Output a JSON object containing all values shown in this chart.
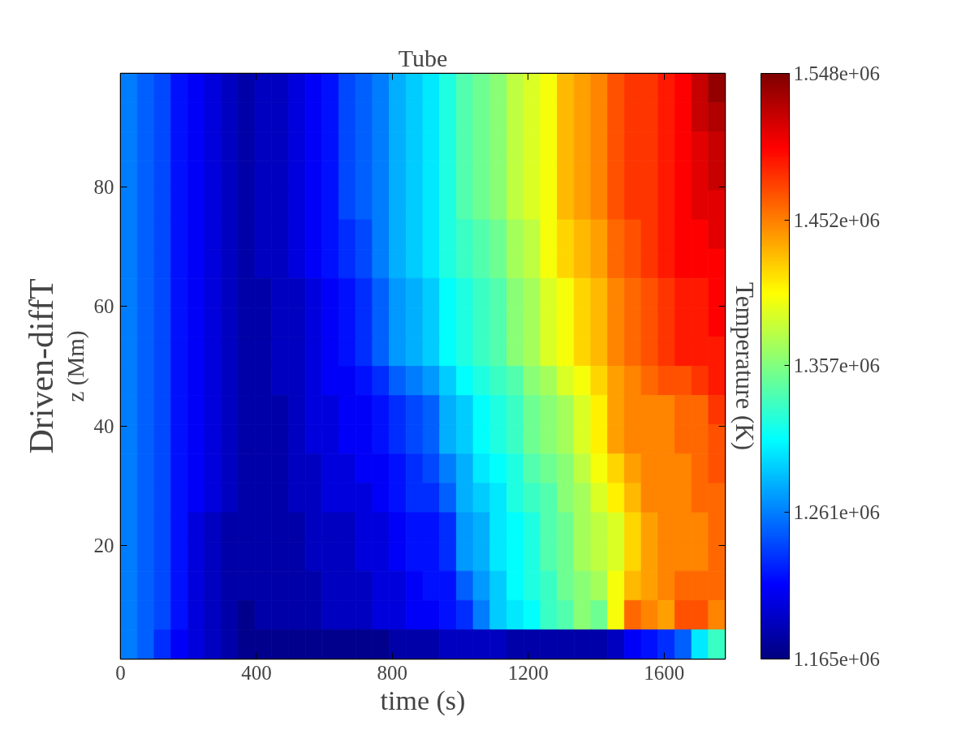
{
  "chart_data": {
    "type": "heatmap",
    "title": "Tube",
    "xlabel": "time (s)",
    "ylabel": "z (Mm)",
    "clabel": "Temperature (K)",
    "annotations": [
      "Driven-diffT"
    ],
    "xlim": [
      0,
      1780
    ],
    "ylim": [
      1,
      99
    ],
    "xticks": [
      0,
      400,
      800,
      1200,
      1600
    ],
    "yticks": [
      20,
      40,
      60,
      80
    ],
    "clim": [
      1165000,
      1548000
    ],
    "cticks": [
      {
        "value": 1165000,
        "label": "1.165e+06"
      },
      {
        "value": 1261000,
        "label": "1.261e+06"
      },
      {
        "value": 1357000,
        "label": "1.357e+06"
      },
      {
        "value": 1452000,
        "label": "1.452e+06"
      },
      {
        "value": 1548000,
        "label": "1.548e+06"
      }
    ],
    "cells": [
      [
        1260000.0,
        1250000.0,
        1240000.0,
        1220000.0,
        1210000.0,
        1200000.0,
        1190000.0,
        1180000.0,
        1190000.0,
        1190000.0,
        1200000.0,
        1210000.0,
        1220000.0,
        1240000.0,
        1250000.0,
        1260000.0,
        1280000.0,
        1290000.0,
        1300000.0,
        1320000.0,
        1340000.0,
        1350000.0,
        1360000.0,
        1380000.0,
        1390000.0,
        1400000.0,
        1430000.0,
        1440000.0,
        1450000.0,
        1470000.0,
        1480000.0,
        1480000.0,
        1490000.0,
        1500000.0,
        1520000.0,
        1540000.0
      ],
      [
        1260000.0,
        1250000.0,
        1240000.0,
        1220000.0,
        1210000.0,
        1200000.0,
        1190000.0,
        1180000.0,
        1190000.0,
        1190000.0,
        1200000.0,
        1210000.0,
        1220000.0,
        1240000.0,
        1250000.0,
        1260000.0,
        1280000.0,
        1290000.0,
        1300000.0,
        1320000.0,
        1340000.0,
        1350000.0,
        1360000.0,
        1380000.0,
        1390000.0,
        1400000.0,
        1430000.0,
        1440000.0,
        1450000.0,
        1470000.0,
        1480000.0,
        1480000.0,
        1490000.0,
        1500000.0,
        1520000.0,
        1530000.0
      ],
      [
        1260000.0,
        1250000.0,
        1240000.0,
        1220000.0,
        1210000.0,
        1200000.0,
        1190000.0,
        1180000.0,
        1190000.0,
        1190000.0,
        1200000.0,
        1210000.0,
        1220000.0,
        1240000.0,
        1250000.0,
        1260000.0,
        1280000.0,
        1290000.0,
        1300000.0,
        1320000.0,
        1340000.0,
        1350000.0,
        1360000.0,
        1380000.0,
        1390000.0,
        1400000.0,
        1430000.0,
        1440000.0,
        1450000.0,
        1470000.0,
        1480000.0,
        1480000.0,
        1490000.0,
        1500000.0,
        1510000.0,
        1520000.0
      ],
      [
        1260000.0,
        1250000.0,
        1240000.0,
        1220000.0,
        1210000.0,
        1200000.0,
        1190000.0,
        1180000.0,
        1190000.0,
        1190000.0,
        1200000.0,
        1210000.0,
        1220000.0,
        1240000.0,
        1250000.0,
        1260000.0,
        1280000.0,
        1290000.0,
        1300000.0,
        1320000.0,
        1340000.0,
        1350000.0,
        1360000.0,
        1380000.0,
        1390000.0,
        1400000.0,
        1430000.0,
        1440000.0,
        1450000.0,
        1470000.0,
        1480000.0,
        1480000.0,
        1490000.0,
        1500000.0,
        1510000.0,
        1520000.0
      ],
      [
        1260000.0,
        1250000.0,
        1240000.0,
        1220000.0,
        1210000.0,
        1200000.0,
        1190000.0,
        1180000.0,
        1190000.0,
        1190000.0,
        1200000.0,
        1210000.0,
        1220000.0,
        1240000.0,
        1250000.0,
        1260000.0,
        1280000.0,
        1290000.0,
        1300000.0,
        1320000.0,
        1340000.0,
        1350000.0,
        1360000.0,
        1380000.0,
        1390000.0,
        1400000.0,
        1430000.0,
        1440000.0,
        1450000.0,
        1470000.0,
        1480000.0,
        1480000.0,
        1490000.0,
        1500000.0,
        1510000.0,
        1510000.0
      ],
      [
        1260000.0,
        1250000.0,
        1240000.0,
        1220000.0,
        1210000.0,
        1200000.0,
        1190000.0,
        1180000.0,
        1190000.0,
        1190000.0,
        1200000.0,
        1210000.0,
        1220000.0,
        1230000.0,
        1240000.0,
        1260000.0,
        1280000.0,
        1290000.0,
        1300000.0,
        1320000.0,
        1330000.0,
        1340000.0,
        1350000.0,
        1370000.0,
        1380000.0,
        1400000.0,
        1420000.0,
        1430000.0,
        1440000.0,
        1460000.0,
        1470000.0,
        1480000.0,
        1490000.0,
        1500000.0,
        1500000.0,
        1510000.0
      ],
      [
        1260000.0,
        1250000.0,
        1240000.0,
        1220000.0,
        1210000.0,
        1200000.0,
        1190000.0,
        1180000.0,
        1190000.0,
        1190000.0,
        1200000.0,
        1210000.0,
        1220000.0,
        1230000.0,
        1240000.0,
        1260000.0,
        1280000.0,
        1290000.0,
        1300000.0,
        1320000.0,
        1330000.0,
        1340000.0,
        1350000.0,
        1370000.0,
        1380000.0,
        1400000.0,
        1420000.0,
        1430000.0,
        1440000.0,
        1460000.0,
        1470000.0,
        1480000.0,
        1490000.0,
        1500000.0,
        1500000.0,
        1500000.0
      ],
      [
        1260000.0,
        1250000.0,
        1240000.0,
        1220000.0,
        1210000.0,
        1200000.0,
        1190000.0,
        1180000.0,
        1180000.0,
        1190000.0,
        1190000.0,
        1200000.0,
        1210000.0,
        1220000.0,
        1230000.0,
        1250000.0,
        1270000.0,
        1280000.0,
        1290000.0,
        1310000.0,
        1320000.0,
        1330000.0,
        1340000.0,
        1360000.0,
        1370000.0,
        1390000.0,
        1400000.0,
        1420000.0,
        1430000.0,
        1450000.0,
        1460000.0,
        1470000.0,
        1480000.0,
        1490000.0,
        1490000.0,
        1500000.0
      ],
      [
        1260000.0,
        1250000.0,
        1240000.0,
        1220000.0,
        1210000.0,
        1200000.0,
        1190000.0,
        1180000.0,
        1180000.0,
        1190000.0,
        1190000.0,
        1200000.0,
        1210000.0,
        1220000.0,
        1230000.0,
        1250000.0,
        1270000.0,
        1280000.0,
        1290000.0,
        1310000.0,
        1320000.0,
        1330000.0,
        1340000.0,
        1360000.0,
        1370000.0,
        1390000.0,
        1400000.0,
        1420000.0,
        1430000.0,
        1450000.0,
        1460000.0,
        1470000.0,
        1480000.0,
        1490000.0,
        1490000.0,
        1500000.0
      ],
      [
        1260000.0,
        1250000.0,
        1240000.0,
        1220000.0,
        1210000.0,
        1200000.0,
        1190000.0,
        1180000.0,
        1180000.0,
        1190000.0,
        1190000.0,
        1200000.0,
        1210000.0,
        1220000.0,
        1230000.0,
        1250000.0,
        1270000.0,
        1280000.0,
        1290000.0,
        1310000.0,
        1320000.0,
        1330000.0,
        1340000.0,
        1360000.0,
        1370000.0,
        1390000.0,
        1400000.0,
        1420000.0,
        1430000.0,
        1450000.0,
        1460000.0,
        1470000.0,
        1480000.0,
        1490000.0,
        1490000.0,
        1490000.0
      ],
      [
        1260000.0,
        1250000.0,
        1240000.0,
        1220000.0,
        1210000.0,
        1200000.0,
        1190000.0,
        1180000.0,
        1180000.0,
        1190000.0,
        1190000.0,
        1200000.0,
        1210000.0,
        1210000.0,
        1220000.0,
        1230000.0,
        1250000.0,
        1260000.0,
        1270000.0,
        1290000.0,
        1310000.0,
        1320000.0,
        1330000.0,
        1340000.0,
        1360000.0,
        1370000.0,
        1390000.0,
        1400000.0,
        1420000.0,
        1440000.0,
        1450000.0,
        1460000.0,
        1470000.0,
        1470000.0,
        1480000.0,
        1490000.0
      ],
      [
        1260000.0,
        1250000.0,
        1240000.0,
        1220000.0,
        1210000.0,
        1200000.0,
        1190000.0,
        1180000.0,
        1180000.0,
        1180000.0,
        1190000.0,
        1200000.0,
        1200000.0,
        1210000.0,
        1210000.0,
        1220000.0,
        1230000.0,
        1240000.0,
        1250000.0,
        1280000.0,
        1290000.0,
        1310000.0,
        1320000.0,
        1330000.0,
        1350000.0,
        1360000.0,
        1370000.0,
        1390000.0,
        1410000.0,
        1440000.0,
        1450000.0,
        1450000.0,
        1450000.0,
        1460000.0,
        1460000.0,
        1480000.0
      ],
      [
        1260000.0,
        1250000.0,
        1240000.0,
        1220000.0,
        1210000.0,
        1200000.0,
        1190000.0,
        1180000.0,
        1180000.0,
        1180000.0,
        1190000.0,
        1200000.0,
        1200000.0,
        1210000.0,
        1210000.0,
        1220000.0,
        1230000.0,
        1240000.0,
        1250000.0,
        1280000.0,
        1290000.0,
        1310000.0,
        1320000.0,
        1330000.0,
        1350000.0,
        1360000.0,
        1370000.0,
        1390000.0,
        1410000.0,
        1440000.0,
        1450000.0,
        1450000.0,
        1450000.0,
        1460000.0,
        1460000.0,
        1470000.0
      ],
      [
        1260000.0,
        1250000.0,
        1240000.0,
        1220000.0,
        1210000.0,
        1200000.0,
        1190000.0,
        1180000.0,
        1180000.0,
        1180000.0,
        1190000.0,
        1190000.0,
        1200000.0,
        1200000.0,
        1210000.0,
        1210000.0,
        1220000.0,
        1230000.0,
        1240000.0,
        1260000.0,
        1280000.0,
        1300000.0,
        1310000.0,
        1320000.0,
        1340000.0,
        1350000.0,
        1360000.0,
        1380000.0,
        1400000.0,
        1420000.0,
        1440000.0,
        1450000.0,
        1450000.0,
        1450000.0,
        1460000.0,
        1470000.0
      ],
      [
        1260000.0,
        1250000.0,
        1240000.0,
        1220000.0,
        1210000.0,
        1200000.0,
        1190000.0,
        1180000.0,
        1180000.0,
        1180000.0,
        1190000.0,
        1190000.0,
        1200000.0,
        1200000.0,
        1200000.0,
        1210000.0,
        1220000.0,
        1230000.0,
        1230000.0,
        1250000.0,
        1280000.0,
        1290000.0,
        1300000.0,
        1320000.0,
        1330000.0,
        1340000.0,
        1360000.0,
        1370000.0,
        1390000.0,
        1410000.0,
        1430000.0,
        1450000.0,
        1450000.0,
        1450000.0,
        1460000.0,
        1460000.0
      ],
      [
        1260000.0,
        1250000.0,
        1240000.0,
        1220000.0,
        1200000.0,
        1190000.0,
        1180000.0,
        1180000.0,
        1180000.0,
        1180000.0,
        1180000.0,
        1190000.0,
        1190000.0,
        1190000.0,
        1200000.0,
        1200000.0,
        1210000.0,
        1220000.0,
        1220000.0,
        1230000.0,
        1270000.0,
        1280000.0,
        1300000.0,
        1310000.0,
        1320000.0,
        1340000.0,
        1350000.0,
        1370000.0,
        1380000.0,
        1390000.0,
        1420000.0,
        1440000.0,
        1450000.0,
        1450000.0,
        1450000.0,
        1460000.0
      ],
      [
        1260000.0,
        1250000.0,
        1240000.0,
        1220000.0,
        1200000.0,
        1190000.0,
        1180000.0,
        1180000.0,
        1180000.0,
        1180000.0,
        1180000.0,
        1190000.0,
        1190000.0,
        1190000.0,
        1200000.0,
        1200000.0,
        1210000.0,
        1220000.0,
        1220000.0,
        1230000.0,
        1270000.0,
        1280000.0,
        1300000.0,
        1310000.0,
        1320000.0,
        1340000.0,
        1350000.0,
        1370000.0,
        1380000.0,
        1390000.0,
        1420000.0,
        1440000.0,
        1450000.0,
        1450000.0,
        1450000.0,
        1460000.0
      ],
      [
        1260000.0,
        1250000.0,
        1240000.0,
        1220000.0,
        1200000.0,
        1190000.0,
        1180000.0,
        1180000.0,
        1180000.0,
        1180000.0,
        1180000.0,
        1180000.0,
        1190000.0,
        1190000.0,
        1190000.0,
        1200000.0,
        1200000.0,
        1210000.0,
        1220000.0,
        1220000.0,
        1250000.0,
        1270000.0,
        1290000.0,
        1310000.0,
        1320000.0,
        1330000.0,
        1350000.0,
        1360000.0,
        1370000.0,
        1400000.0,
        1430000.0,
        1440000.0,
        1450000.0,
        1460000.0,
        1460000.0,
        1460000.0
      ],
      [
        1260000.0,
        1250000.0,
        1240000.0,
        1220000.0,
        1200000.0,
        1190000.0,
        1180000.0,
        1170000.0,
        1180000.0,
        1180000.0,
        1180000.0,
        1180000.0,
        1190000.0,
        1190000.0,
        1190000.0,
        1200000.0,
        1200000.0,
        1210000.0,
        1210000.0,
        1220000.0,
        1230000.0,
        1260000.0,
        1290000.0,
        1300000.0,
        1310000.0,
        1330000.0,
        1340000.0,
        1360000.0,
        1350000.0,
        1400000.0,
        1460000.0,
        1450000.0,
        1440000.0,
        1470000.0,
        1470000.0,
        1450000.0
      ],
      [
        1260000.0,
        1250000.0,
        1230000.0,
        1210000.0,
        1200000.0,
        1190000.0,
        1180000.0,
        1170000.0,
        1170000.0,
        1170000.0,
        1170000.0,
        1170000.0,
        1170000.0,
        1170000.0,
        1170000.0,
        1170000.0,
        1180000.0,
        1180000.0,
        1180000.0,
        1190000.0,
        1190000.0,
        1190000.0,
        1190000.0,
        1180000.0,
        1180000.0,
        1180000.0,
        1180000.0,
        1180000.0,
        1180000.0,
        1190000.0,
        1210000.0,
        1220000.0,
        1230000.0,
        1250000.0,
        1300000.0,
        1330000.0
      ]
    ]
  }
}
